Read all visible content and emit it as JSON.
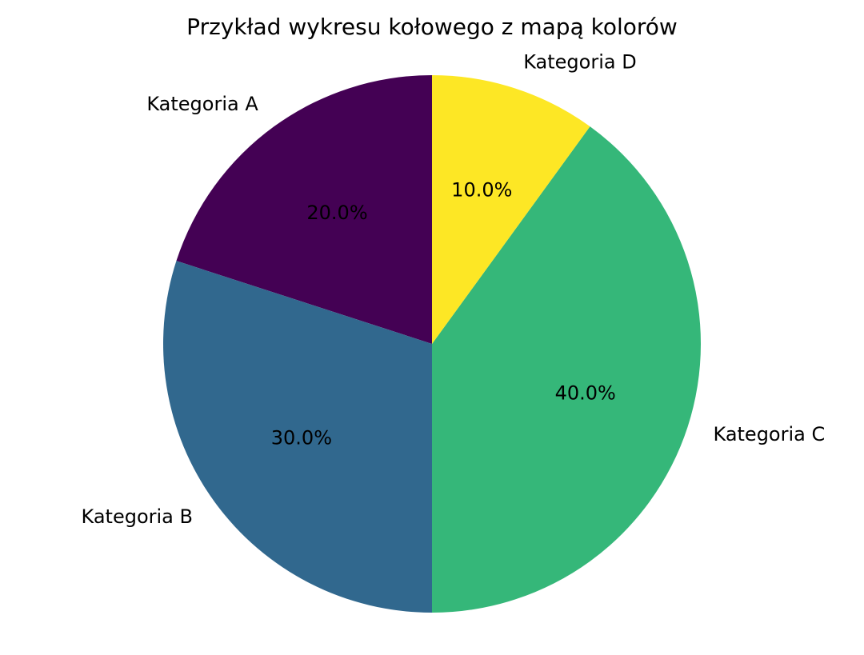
{
  "chart_data": {
    "type": "pie",
    "title": "Przykład wykresu kołowego z mapą kolorów",
    "categories": [
      "Kategoria A",
      "Kategoria B",
      "Kategoria C",
      "Kategoria D"
    ],
    "values": [
      20,
      30,
      40,
      10
    ],
    "value_labels": [
      "20.0%",
      "30.0%",
      "40.0%",
      "10.0%"
    ],
    "colors": [
      "#440154",
      "#31688e",
      "#35b779",
      "#fde725"
    ]
  }
}
